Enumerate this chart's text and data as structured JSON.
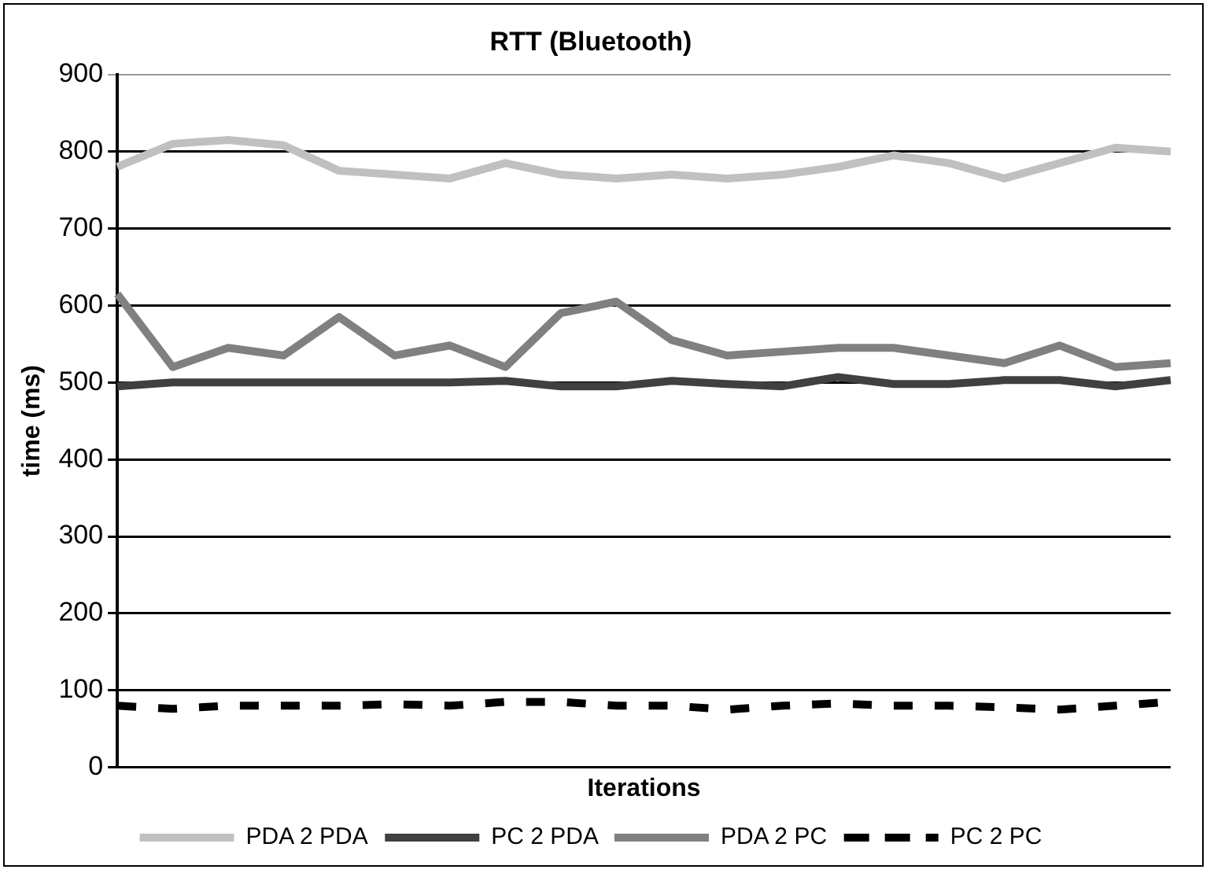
{
  "chart_data": {
    "type": "line",
    "title": "RTT (Bluetooth)",
    "xlabel": "Iterations",
    "ylabel": "time (ms)",
    "categories": [
      null,
      null,
      null,
      null,
      null,
      null,
      null,
      null,
      null,
      null,
      null,
      null,
      null,
      null,
      null,
      null,
      null,
      null,
      null,
      null
    ],
    "series": [
      {
        "name": "PDA 2 PDA",
        "color": "#c0c0c0",
        "values": [
          780,
          810,
          815,
          808,
          775,
          770,
          765,
          785,
          770,
          765,
          770,
          765,
          770,
          780,
          795,
          785,
          765,
          785,
          805,
          800
        ]
      },
      {
        "name": "PC 2 PDA",
        "color": "#404040",
        "values": [
          495,
          500,
          500,
          500,
          500,
          500,
          500,
          502,
          495,
          495,
          502,
          498,
          495,
          507,
          498,
          498,
          503,
          503,
          495,
          503
        ]
      },
      {
        "name": "PDA 2 PC",
        "color": "#808080",
        "values": [
          615,
          520,
          545,
          535,
          585,
          535,
          548,
          520,
          590,
          605,
          555,
          535,
          540,
          545,
          545,
          535,
          525,
          548,
          520,
          525
        ]
      },
      {
        "name": "PC 2 PC",
        "color": "#000000",
        "line_style": "dashed",
        "values": [
          80,
          76,
          80,
          80,
          80,
          82,
          80,
          85,
          85,
          80,
          80,
          75,
          80,
          83,
          80,
          80,
          78,
          75,
          80,
          85
        ]
      }
    ],
    "ylim": [
      0,
      900
    ],
    "yticks": [
      0,
      100,
      200,
      300,
      400,
      500,
      600,
      700,
      800,
      900
    ],
    "grid": "y",
    "legend": "bottom",
    "tick_labels": "y",
    "marker": "none",
    "line_style": "solid"
  }
}
